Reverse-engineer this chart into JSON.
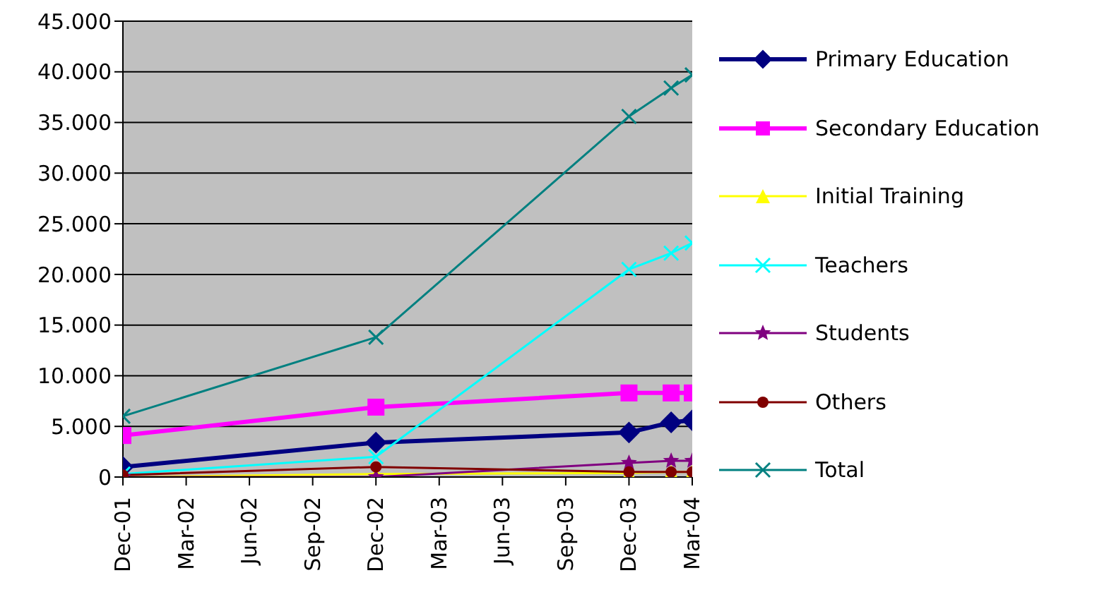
{
  "chart_data": {
    "type": "line",
    "x": [
      "2001-12",
      "2002-12",
      "2003-12",
      "2004-02",
      "2004-03"
    ],
    "series": [
      {
        "name": "Primary Education",
        "color": "#000080",
        "marker": "diamond",
        "values": [
          1000,
          3400,
          4400,
          5400,
          5600
        ]
      },
      {
        "name": "Secondary Education",
        "color": "#ff00ff",
        "marker": "square",
        "values": [
          4100,
          6900,
          8300,
          8300,
          8300
        ]
      },
      {
        "name": "Initial Training",
        "color": "#ffff00",
        "marker": "triangle",
        "values": [
          0,
          300,
          400,
          500,
          500
        ]
      },
      {
        "name": "Teachers",
        "color": "#00ffff",
        "marker": "cross",
        "values": [
          300,
          2000,
          20500,
          22100,
          23100
        ]
      },
      {
        "name": "Students",
        "color": "#800080",
        "marker": "star",
        "values": [
          0,
          0,
          1400,
          1600,
          1600
        ]
      },
      {
        "name": "Others",
        "color": "#800000",
        "marker": "circle",
        "values": [
          200,
          1000,
          500,
          500,
          500
        ]
      },
      {
        "name": "Total",
        "color": "#008080",
        "marker": "cross",
        "values": [
          6000,
          13800,
          35600,
          38400,
          39700
        ]
      }
    ],
    "xlim": [
      "2001-12",
      "2004-03"
    ],
    "xticks": [
      {
        "value": "2001-12",
        "label": "Dec-01"
      },
      {
        "value": "2002-03",
        "label": "Mar-02"
      },
      {
        "value": "2002-06",
        "label": "Jun-02"
      },
      {
        "value": "2002-09",
        "label": "Sep-02"
      },
      {
        "value": "2002-12",
        "label": "Dec-02"
      },
      {
        "value": "2003-03",
        "label": "Mar-03"
      },
      {
        "value": "2003-06",
        "label": "Jun-03"
      },
      {
        "value": "2003-09",
        "label": "Sep-03"
      },
      {
        "value": "2003-12",
        "label": "Dec-03"
      },
      {
        "value": "2004-03",
        "label": "Mar-04"
      }
    ],
    "ylim": [
      0,
      45000
    ],
    "yticks": [
      {
        "value": 0,
        "label": "0"
      },
      {
        "value": 5000,
        "label": "5.000"
      },
      {
        "value": 10000,
        "label": "10.000"
      },
      {
        "value": 15000,
        "label": "15.000"
      },
      {
        "value": 20000,
        "label": "20.000"
      },
      {
        "value": 25000,
        "label": "25.000"
      },
      {
        "value": 30000,
        "label": "30.000"
      },
      {
        "value": 35000,
        "label": "35.000"
      },
      {
        "value": 40000,
        "label": "40.000"
      },
      {
        "value": 45000,
        "label": "45.000"
      }
    ],
    "grid": "y",
    "legend": "right",
    "line_style": "solid"
  }
}
